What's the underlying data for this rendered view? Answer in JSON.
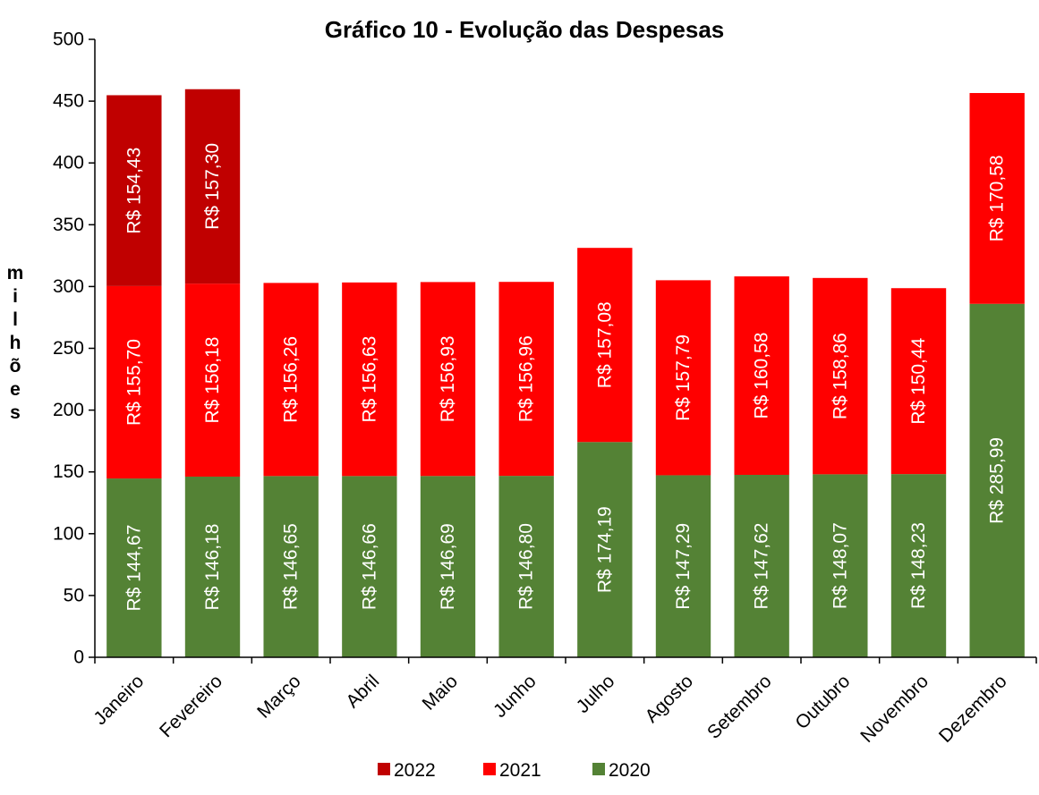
{
  "chart_data": {
    "type": "bar",
    "stacked": true,
    "title": "Gráfico 10 - Evolução das Despesas",
    "xlabel": "",
    "ylabel": "milhões",
    "ylim": [
      0,
      500
    ],
    "yticks": [
      0,
      50,
      100,
      150,
      200,
      250,
      300,
      350,
      400,
      450,
      500
    ],
    "grid": false,
    "legend_position": "bottom",
    "categories": [
      "Janeiro",
      "Fevereiro",
      "Março",
      "Abril",
      "Maio",
      "Junho",
      "Julho",
      "Agosto",
      "Setembro",
      "Outubro",
      "Novembro",
      "Dezembro"
    ],
    "series": [
      {
        "name": "2020",
        "color": "#548235",
        "values": [
          144.67,
          146.18,
          146.65,
          146.66,
          146.69,
          146.8,
          174.19,
          147.29,
          147.62,
          148.07,
          148.23,
          285.99
        ],
        "labels": [
          "R$ 144,67",
          "R$ 146,18",
          "R$ 146,65",
          "R$ 146,66",
          "R$ 146,69",
          "R$ 146,80",
          "R$ 174,19",
          "R$ 147,29",
          "R$ 147,62",
          "R$ 148,07",
          "R$ 148,23",
          "R$ 285,99"
        ]
      },
      {
        "name": "2021",
        "color": "#ff0000",
        "values": [
          155.7,
          156.18,
          156.26,
          156.63,
          156.93,
          156.96,
          157.08,
          157.79,
          160.58,
          158.86,
          150.44,
          170.58
        ],
        "labels": [
          "R$ 155,70",
          "R$ 156,18",
          "R$ 156,26",
          "R$ 156,63",
          "R$ 156,93",
          "R$ 156,96",
          "R$ 157,08",
          "R$ 157,79",
          "R$ 160,58",
          "R$ 158,86",
          "R$ 150,44",
          "R$ 170,58"
        ]
      },
      {
        "name": "2022",
        "color": "#c00000",
        "values": [
          154.43,
          157.3,
          null,
          null,
          null,
          null,
          null,
          null,
          null,
          null,
          null,
          null
        ],
        "labels": [
          "R$ 154,43",
          "R$ 157,30",
          null,
          null,
          null,
          null,
          null,
          null,
          null,
          null,
          null,
          null
        ]
      }
    ],
    "legend_order": [
      "2022",
      "2021",
      "2020"
    ]
  }
}
